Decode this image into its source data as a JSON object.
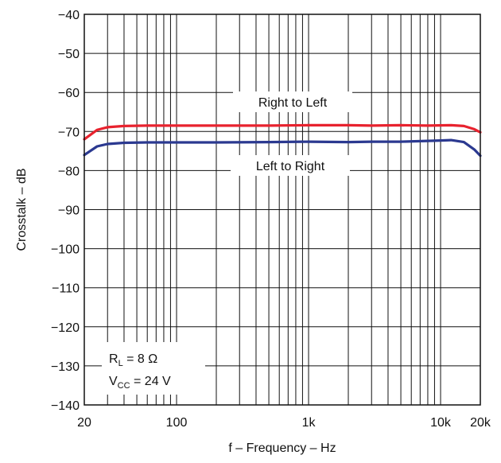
{
  "chart_data": {
    "type": "line",
    "xlabel": "f – Frequency – Hz",
    "ylabel": "Crosstalk – dB",
    "x_scale": "log",
    "xlim": [
      20,
      20000
    ],
    "ylim": [
      -140,
      -40
    ],
    "grid": true,
    "x_ticks": [
      {
        "value": 20,
        "label": "20"
      },
      {
        "value": 100,
        "label": "100"
      },
      {
        "value": 1000,
        "label": "1k"
      },
      {
        "value": 10000,
        "label": "10k"
      },
      {
        "value": 20000,
        "label": "20k"
      }
    ],
    "y_ticks": [
      {
        "value": -40,
        "label": "−40"
      },
      {
        "value": -50,
        "label": "−50"
      },
      {
        "value": -60,
        "label": "−60"
      },
      {
        "value": -70,
        "label": "−70"
      },
      {
        "value": -80,
        "label": "−80"
      },
      {
        "value": -90,
        "label": "−90"
      },
      {
        "value": -100,
        "label": "−100"
      },
      {
        "value": -110,
        "label": "−110"
      },
      {
        "value": -120,
        "label": "−120"
      },
      {
        "value": -130,
        "label": "−130"
      },
      {
        "value": -140,
        "label": "−140"
      }
    ],
    "series": [
      {
        "name": "Right to Left",
        "color": "#e8222e",
        "x": [
          20,
          25,
          30,
          40,
          60,
          100,
          200,
          500,
          1000,
          2000,
          3000,
          5000,
          8000,
          12000,
          15000,
          18000,
          20000
        ],
        "y": [
          -72.0,
          -69.6,
          -68.9,
          -68.6,
          -68.5,
          -68.5,
          -68.5,
          -68.5,
          -68.4,
          -68.4,
          -68.5,
          -68.4,
          -68.5,
          -68.4,
          -68.6,
          -69.4,
          -70.2
        ]
      },
      {
        "name": "Left to Right",
        "color": "#2b3990",
        "x": [
          20,
          25,
          30,
          40,
          60,
          100,
          200,
          500,
          1000,
          2000,
          3000,
          5000,
          8000,
          10000,
          12000,
          15000,
          18000,
          20000
        ],
        "y": [
          -76.0,
          -73.8,
          -73.2,
          -72.9,
          -72.8,
          -72.8,
          -72.8,
          -72.7,
          -72.6,
          -72.7,
          -72.6,
          -72.6,
          -72.4,
          -72.3,
          -72.2,
          -72.7,
          -74.6,
          -76.2
        ]
      }
    ],
    "annotations": [
      {
        "text": "Right to Left",
        "series": "Right to Left"
      },
      {
        "text": "Left to Right",
        "series": "Left to Right"
      }
    ],
    "conditions": [
      {
        "symbol": "R",
        "subscript": "L",
        "rest": " = 8 Ω"
      },
      {
        "symbol": "V",
        "subscript": "CC",
        "rest": " = 24 V"
      }
    ]
  }
}
